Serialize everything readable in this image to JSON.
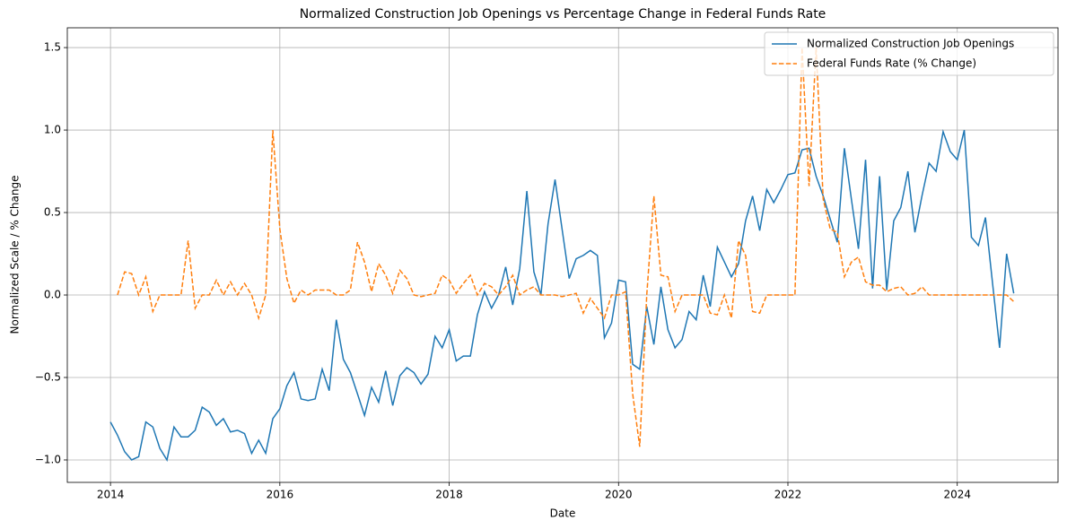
{
  "chart_data": {
    "type": "line",
    "title": "Normalized Construction Job Openings vs Percentage Change in Federal Funds Rate",
    "x_label": "Date",
    "y_label": "Normalized Scale / % Change",
    "x": [
      2014,
      2014.083,
      2014.167,
      2014.25,
      2014.333,
      2014.417,
      2014.5,
      2014.583,
      2014.667,
      2014.75,
      2014.833,
      2014.917,
      2015,
      2015.083,
      2015.167,
      2015.25,
      2015.333,
      2015.417,
      2015.5,
      2015.583,
      2015.667,
      2015.75,
      2015.833,
      2015.917,
      2016,
      2016.083,
      2016.167,
      2016.25,
      2016.333,
      2016.417,
      2016.5,
      2016.583,
      2016.667,
      2016.75,
      2016.833,
      2016.917,
      2017,
      2017.083,
      2017.167,
      2017.25,
      2017.333,
      2017.417,
      2017.5,
      2017.583,
      2017.667,
      2017.75,
      2017.833,
      2017.917,
      2018,
      2018.083,
      2018.167,
      2018.25,
      2018.333,
      2018.417,
      2018.5,
      2018.583,
      2018.667,
      2018.75,
      2018.833,
      2018.917,
      2019,
      2019.083,
      2019.167,
      2019.25,
      2019.333,
      2019.417,
      2019.5,
      2019.583,
      2019.667,
      2019.75,
      2019.833,
      2019.917,
      2020,
      2020.083,
      2020.167,
      2020.25,
      2020.333,
      2020.417,
      2020.5,
      2020.583,
      2020.667,
      2020.75,
      2020.833,
      2020.917,
      2021,
      2021.083,
      2021.167,
      2021.25,
      2021.333,
      2021.417,
      2021.5,
      2021.583,
      2021.667,
      2021.75,
      2021.833,
      2021.917,
      2022,
      2022.083,
      2022.167,
      2022.25,
      2022.333,
      2022.417,
      2022.5,
      2022.583,
      2022.667,
      2022.75,
      2022.833,
      2022.917,
      2023,
      2023.083,
      2023.167,
      2023.25,
      2023.333,
      2023.417,
      2023.5,
      2023.583,
      2023.667,
      2023.75,
      2023.833,
      2023.917,
      2024,
      2024.083,
      2024.167,
      2024.25,
      2024.333,
      2024.417,
      2024.5,
      2024.583,
      2024.667
    ],
    "series": [
      {
        "name": "Normalized Construction Job Openings",
        "color": "#1f77b4",
        "dash": false,
        "values": [
          -0.77,
          -0.85,
          -0.95,
          -1.0,
          -0.98,
          -0.77,
          -0.8,
          -0.93,
          -1.0,
          -0.8,
          -0.86,
          -0.86,
          -0.82,
          -0.68,
          -0.71,
          -0.79,
          -0.75,
          -0.83,
          -0.82,
          -0.84,
          -0.96,
          -0.88,
          -0.96,
          -0.75,
          -0.69,
          -0.55,
          -0.47,
          -0.63,
          -0.64,
          -0.63,
          -0.45,
          -0.58,
          -0.15,
          -0.39,
          -0.47,
          -0.6,
          -0.73,
          -0.56,
          -0.65,
          -0.46,
          -0.67,
          -0.49,
          -0.44,
          -0.47,
          -0.54,
          -0.48,
          -0.25,
          -0.32,
          -0.21,
          -0.4,
          -0.37,
          -0.37,
          -0.12,
          0.02,
          -0.08,
          0.0,
          0.17,
          -0.06,
          0.16,
          0.63,
          0.14,
          0.0,
          0.43,
          0.7,
          0.4,
          0.1,
          0.22,
          0.24,
          0.27,
          0.24,
          -0.26,
          -0.17,
          0.09,
          0.08,
          -0.42,
          -0.45,
          -0.07,
          -0.3,
          0.05,
          -0.21,
          -0.32,
          -0.27,
          -0.1,
          -0.15,
          0.12,
          -0.07,
          0.29,
          0.2,
          0.11,
          0.19,
          0.45,
          0.6,
          0.39,
          0.64,
          0.56,
          0.64,
          0.73,
          0.74,
          0.88,
          0.89,
          0.72,
          0.6,
          0.46,
          0.32,
          0.89,
          0.58,
          0.28,
          0.82,
          0.04,
          0.72,
          0.03,
          0.45,
          0.53,
          0.75,
          0.38,
          0.6,
          0.8,
          0.75,
          0.99,
          0.87,
          0.82,
          1.0,
          0.35,
          0.3,
          0.47,
          0.07,
          -0.32,
          0.25,
          0.01
        ]
      },
      {
        "name": "Federal Funds Rate (% Change)",
        "color": "#ff7f0e",
        "dash": true,
        "values": [
          null,
          0.0,
          0.14,
          0.13,
          0.0,
          0.11,
          -0.1,
          0.0,
          0.0,
          0.0,
          0.0,
          0.33,
          -0.08,
          0.0,
          0.0,
          0.09,
          0.0,
          0.08,
          0.0,
          0.07,
          0.0,
          -0.14,
          0.0,
          1.0,
          0.4,
          0.1,
          -0.05,
          0.03,
          0.0,
          0.03,
          0.03,
          0.03,
          0.0,
          0.0,
          0.03,
          0.32,
          0.2,
          0.02,
          0.19,
          0.12,
          0.01,
          0.15,
          0.1,
          0.0,
          -0.01,
          0.0,
          0.01,
          0.12,
          0.09,
          0.01,
          0.07,
          0.12,
          0.0,
          0.07,
          0.05,
          0.0,
          0.05,
          0.12,
          0.0,
          0.03,
          0.05,
          0.0,
          0.0,
          0.0,
          -0.01,
          0.0,
          0.01,
          -0.11,
          -0.02,
          -0.08,
          -0.14,
          0.0,
          0.0,
          0.02,
          -0.6,
          -0.92,
          0.0,
          0.6,
          0.12,
          0.11,
          -0.1,
          0.0,
          0.0,
          0.0,
          0.0,
          -0.11,
          -0.12,
          0.0,
          -0.14,
          0.33,
          0.24,
          -0.1,
          -0.11,
          0.0,
          0.0,
          0.0,
          0.0,
          0.0,
          1.5,
          0.66,
          1.5,
          0.58,
          0.4,
          0.38,
          0.11,
          0.2,
          0.23,
          0.08,
          0.06,
          0.06,
          0.02,
          0.04,
          0.05,
          0.0,
          0.01,
          0.05,
          0.0,
          0.0,
          0.0,
          0.0,
          0.0,
          0.0,
          0.0,
          0.0,
          0.0,
          0.0,
          0.0,
          0.0,
          -0.04
        ]
      }
    ],
    "xlim": [
      2013.49,
      2025.19
    ],
    "xticks": [
      2014,
      2016,
      2018,
      2020,
      2022,
      2024
    ],
    "ylim": [
      -1.136,
      1.62
    ],
    "yticks": [
      {
        "value": -1.0,
        "label": "−1.0"
      },
      {
        "value": -0.5,
        "label": "−0.5"
      },
      {
        "value": 0.0,
        "label": "0.0"
      },
      {
        "value": 0.5,
        "label": "0.5"
      },
      {
        "value": 1.0,
        "label": "1.0"
      },
      {
        "value": 1.5,
        "label": "1.5"
      }
    ],
    "grid": true,
    "legend": "upper right"
  }
}
